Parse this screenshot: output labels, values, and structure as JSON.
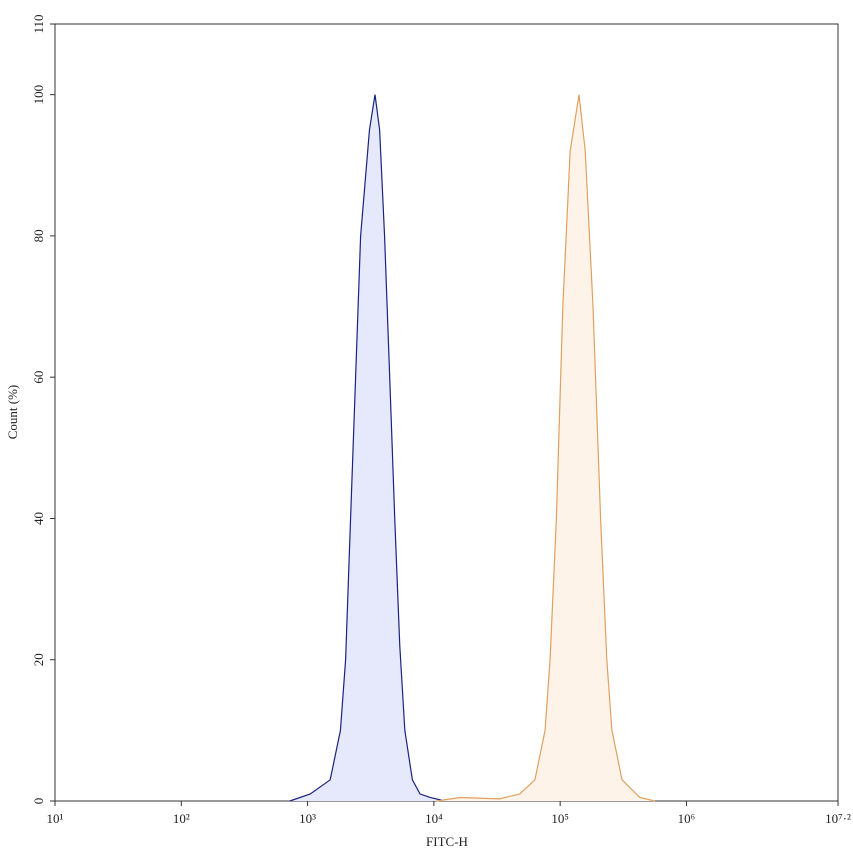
{
  "chart_data": {
    "type": "area",
    "xlabel": "FITC-H",
    "ylabel": "Count (%)",
    "xscale": "log",
    "xlim": [
      10,
      15848931.92
    ],
    "ylim": [
      0,
      110
    ],
    "xticks": [
      {
        "value": 10,
        "label": "10¹"
      },
      {
        "value": 100,
        "label": "10²"
      },
      {
        "value": 1000,
        "label": "10³"
      },
      {
        "value": 10000,
        "label": "10⁴"
      },
      {
        "value": 100000,
        "label": "10⁵"
      },
      {
        "value": 1000000,
        "label": "10⁶"
      },
      {
        "value": 15848931.92,
        "label": "10⁷·²"
      }
    ],
    "yticks": [
      0,
      20,
      40,
      60,
      80,
      100,
      110
    ],
    "series": [
      {
        "color": "#1a237e",
        "fill": "#e6e8fb",
        "x": [
          724,
          1050,
          1510,
          1820,
          2000,
          2190,
          2400,
          2630,
          3090,
          3420,
          3720,
          4070,
          4470,
          4900,
          5370,
          5890,
          6760,
          7760,
          9330,
          12300
        ],
        "values": [
          0,
          1,
          3,
          10,
          20,
          40,
          60,
          80,
          95,
          100,
          95,
          80,
          60,
          40,
          22,
          10,
          3,
          1,
          0.5,
          0
        ]
      },
      {
        "color": "#e0a060",
        "fill": "#fdf3e8",
        "x": [
          10500,
          16200,
          33100,
          47900,
          63100,
          75900,
          83200,
          93300,
          105000,
          120000,
          141000,
          158000,
          182000,
          209000,
          234000,
          257000,
          309000,
          427000,
          562000
        ],
        "values": [
          0,
          0.5,
          0.3,
          1,
          3,
          10,
          20,
          40,
          70,
          92,
          100,
          92,
          70,
          40,
          20,
          10,
          3,
          0.5,
          0
        ]
      }
    ]
  }
}
